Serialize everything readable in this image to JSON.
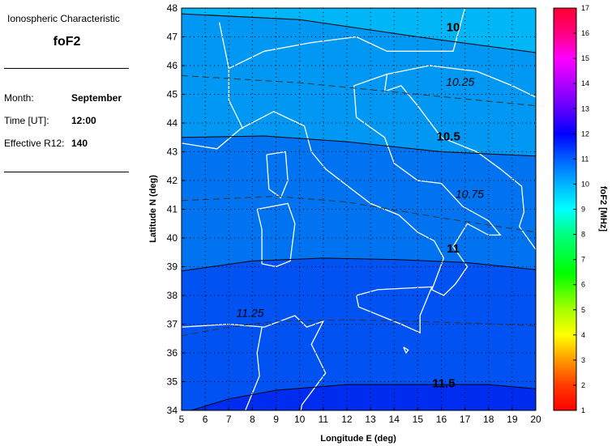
{
  "panel": {
    "heading": "Ionospheric Characteristic",
    "characteristic": "foF2",
    "fields": [
      {
        "label": "Month:",
        "value": "September"
      },
      {
        "label": "Time [UT]:",
        "value": "12:00"
      },
      {
        "label": "Effective R12:",
        "value": "140"
      }
    ]
  },
  "chart_data": {
    "type": "heatmap",
    "subtype": "filled contour map",
    "xlabel": "Longitude E (deg)",
    "ylabel": "Latitude N (deg)",
    "xlim": [
      5,
      20
    ],
    "ylim": [
      34,
      48
    ],
    "xticks": [
      "5",
      "6",
      "7",
      "8",
      "9",
      "10",
      "11",
      "12",
      "13",
      "14",
      "15",
      "16",
      "17",
      "18",
      "19",
      "20"
    ],
    "yticks": [
      "34",
      "35",
      "36",
      "37",
      "38",
      "39",
      "40",
      "41",
      "42",
      "43",
      "44",
      "45",
      "46",
      "47",
      "48"
    ],
    "grid": true,
    "colorbar": {
      "label": "foF2 [MHz]",
      "range": [
        1,
        17
      ],
      "ticks": [
        "1",
        "2",
        "3",
        "4",
        "5",
        "6",
        "7",
        "8",
        "9",
        "10",
        "11",
        "12",
        "13",
        "14",
        "15",
        "16",
        "17"
      ]
    },
    "band_colors": [
      "#00b6f6",
      "#0098f2",
      "#0074f0",
      "#0052f2",
      "#002cf0"
    ],
    "contours": [
      {
        "level": 10,
        "label": "10",
        "style": "solid",
        "points": [
          [
            5,
            47.8
          ],
          [
            10,
            47.6
          ],
          [
            15,
            47.0
          ],
          [
            20,
            46.45
          ]
        ]
      },
      {
        "level": 10.25,
        "label": "10.25",
        "style": "dashed",
        "points": [
          [
            5,
            45.65
          ],
          [
            10,
            45.4
          ],
          [
            15,
            45.0
          ],
          [
            20,
            44.6
          ]
        ]
      },
      {
        "level": 10.5,
        "label": "10.5",
        "style": "solid",
        "points": [
          [
            5,
            43.5
          ],
          [
            8.5,
            43.55
          ],
          [
            12,
            43.35
          ],
          [
            16,
            43.0
          ],
          [
            20,
            42.85
          ]
        ]
      },
      {
        "level": 10.75,
        "label": "10.75",
        "style": "dashed",
        "points": [
          [
            5,
            41.3
          ],
          [
            9,
            41.45
          ],
          [
            12,
            41.25
          ],
          [
            16,
            40.7
          ],
          [
            20,
            40.2
          ]
        ]
      },
      {
        "level": 11,
        "label": "11",
        "style": "solid",
        "points": [
          [
            5,
            38.85
          ],
          [
            8,
            39.2
          ],
          [
            11,
            39.3
          ],
          [
            14,
            39.25
          ],
          [
            17,
            39.15
          ],
          [
            20,
            38.9
          ]
        ]
      },
      {
        "level": 11.25,
        "label": "11.25",
        "style": "dashed",
        "points": [
          [
            5,
            36.6
          ],
          [
            7,
            36.9
          ],
          [
            9,
            37.1
          ],
          [
            12,
            37.15
          ],
          [
            15,
            37.1
          ],
          [
            20,
            36.95
          ]
        ]
      },
      {
        "level": 11.5,
        "label": "11.5",
        "style": "solid",
        "points": [
          [
            5,
            33.9
          ],
          [
            7,
            34.4
          ],
          [
            9,
            34.7
          ],
          [
            12,
            34.9
          ],
          [
            15,
            34.9
          ],
          [
            18,
            34.9
          ],
          [
            20,
            34.75
          ]
        ]
      }
    ],
    "contour_labels": [
      {
        "text": "10",
        "lon": 16.5,
        "lat": 47.2
      },
      {
        "text": "10.25",
        "lon": 16.8,
        "lat": 45.3
      },
      {
        "text": "10.5",
        "lon": 16.3,
        "lat": 43.4
      },
      {
        "text": "10.75",
        "lon": 17.2,
        "lat": 41.4
      },
      {
        "text": "11",
        "lon": 16.5,
        "lat": 39.5
      },
      {
        "text": "11.25",
        "lon": 7.9,
        "lat": 37.25
      },
      {
        "text": "11.5",
        "lon": 16.1,
        "lat": 34.8
      }
    ]
  }
}
